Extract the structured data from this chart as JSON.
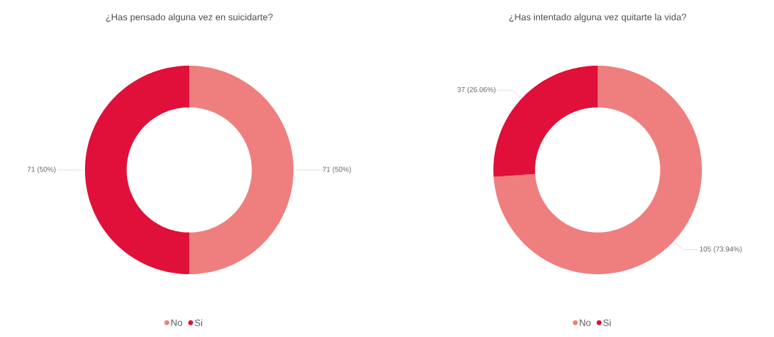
{
  "chart_data": [
    {
      "type": "donut",
      "title": "¿Has pensado alguna vez en suicidarte?",
      "categories": [
        "No",
        "Si"
      ],
      "values": [
        71,
        71
      ],
      "colors": [
        "#ee7f7e",
        "#e0103a"
      ],
      "value_labels": [
        "71 (50%)",
        "71 (50%)"
      ],
      "legend": "bottom"
    },
    {
      "type": "donut",
      "title": "¿Has intentado alguna vez quitarte la vida?",
      "categories": [
        "No",
        "Si"
      ],
      "values": [
        105,
        37
      ],
      "colors": [
        "#ee7f7e",
        "#e0103a"
      ],
      "value_labels": [
        "105 (73.94%)",
        "37 (26.06%)"
      ],
      "legend": "bottom"
    }
  ]
}
